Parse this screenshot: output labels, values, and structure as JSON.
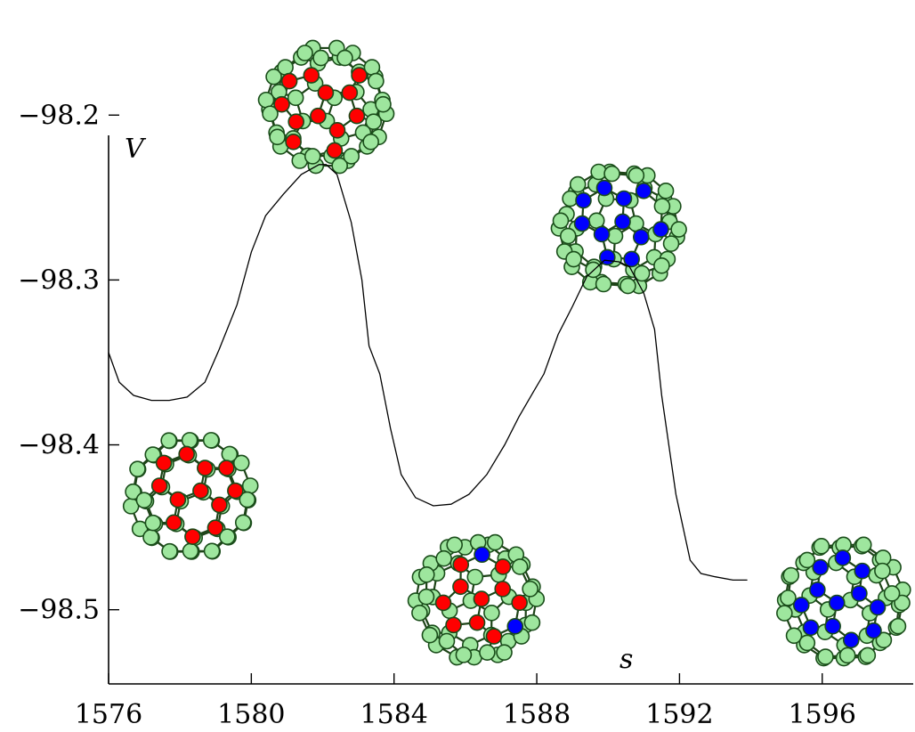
{
  "chart_data": {
    "type": "line",
    "title": "",
    "xlabel": "s",
    "ylabel": "V",
    "xlim": [
      1576,
      1598.6
    ],
    "ylim": [
      -98.545,
      -98.195
    ],
    "xticks": [
      1576,
      1580,
      1584,
      1588,
      1592,
      1596
    ],
    "yticks": [
      -98.2,
      -98.3,
      -98.4,
      -98.5
    ],
    "xtick_labels": [
      "1576",
      "1580",
      "1584",
      "1588",
      "1592",
      "1596"
    ],
    "ytick_labels": [
      "−98.2",
      "−98.3",
      "−98.4",
      "−98.5"
    ],
    "grid": false,
    "legend": "none",
    "series": [
      {
        "x": [
          1576.0,
          1576.3,
          1576.7,
          1577.2,
          1577.7,
          1578.2,
          1578.7,
          1579.1,
          1579.6,
          1580.0,
          1580.4,
          1580.9,
          1581.4,
          1581.9,
          1582.1,
          1582.4,
          1582.8,
          1583.1,
          1583.3,
          1583.6,
          1583.9,
          1584.2,
          1584.6,
          1585.1,
          1585.6,
          1586.1,
          1586.6,
          1587.1,
          1587.5,
          1587.9,
          1588.2,
          1588.6,
          1589.0,
          1589.4,
          1589.9,
          1590.3,
          1590.6,
          1591.0,
          1591.3,
          1591.5,
          1591.9,
          1592.3,
          1592.6,
          1593.0,
          1593.5,
          1593.9
        ],
        "y": [
          -98.344,
          -98.362,
          -98.37,
          -98.373,
          -98.373,
          -98.371,
          -98.362,
          -98.342,
          -98.315,
          -98.283,
          -98.261,
          -98.248,
          -98.236,
          -98.23,
          -98.23,
          -98.236,
          -98.265,
          -98.3,
          -98.34,
          -98.357,
          -98.39,
          -98.418,
          -98.432,
          -98.437,
          -98.436,
          -98.43,
          -98.418,
          -98.4,
          -98.383,
          -98.368,
          -98.357,
          -98.333,
          -98.316,
          -98.298,
          -98.288,
          -98.289,
          -98.292,
          -98.308,
          -98.33,
          -98.37,
          -98.43,
          -98.47,
          -98.478,
          -98.48,
          -98.482,
          -98.482
        ]
      }
    ],
    "insets": [
      {
        "name": "cage-1",
        "cx": 1578.3,
        "cy": -98.431,
        "color_counts": {
          "red": 12,
          "blue": 0
        }
      },
      {
        "name": "cage-2",
        "cx": 1582.1,
        "cy": -98.195,
        "color_counts": {
          "red": 12,
          "blue": 0
        }
      },
      {
        "name": "cage-3",
        "cx": 1586.3,
        "cy": -98.494,
        "color_counts": {
          "red": 10,
          "blue": 2
        }
      },
      {
        "name": "cage-4",
        "cx": 1590.3,
        "cy": -98.269,
        "color_counts": {
          "red": 0,
          "blue": 11
        }
      },
      {
        "name": "cage-5",
        "cx": 1596.6,
        "cy": -98.495,
        "color_counts": {
          "red": 0,
          "blue": 12
        }
      }
    ]
  },
  "colors": {
    "axis": "#000000",
    "curve": "#000000",
    "atom_base": "#9ee69e",
    "atom_red": "#ff0000",
    "atom_blue": "#0000ff",
    "bond": "#1e4418"
  }
}
